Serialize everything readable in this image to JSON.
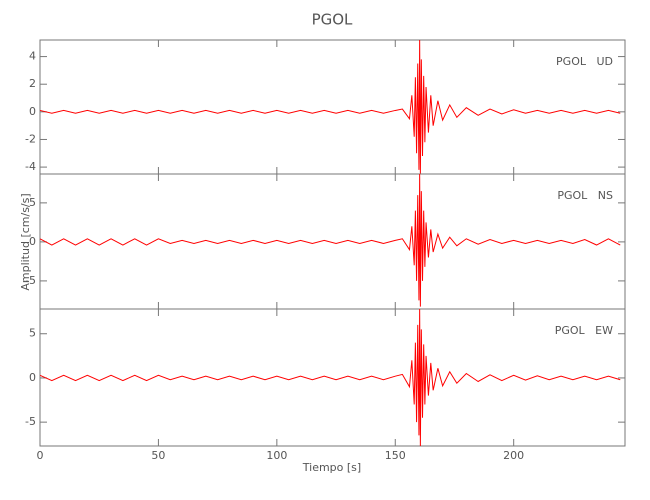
{
  "chart_data": [
    {
      "type": "line",
      "title": "PGOL",
      "label": "PGOL   UD",
      "color": "#ff0000",
      "x": [
        0,
        5,
        10,
        15,
        20,
        25,
        30,
        35,
        40,
        45,
        50,
        55,
        60,
        65,
        70,
        75,
        80,
        85,
        90,
        95,
        100,
        105,
        110,
        115,
        120,
        125,
        130,
        135,
        140,
        145,
        150,
        153,
        156,
        157,
        158,
        158.5,
        159,
        159.5,
        160,
        160.3,
        160.6,
        161,
        161.5,
        162,
        162.5,
        163,
        164,
        165,
        166,
        168,
        170,
        173,
        176,
        180,
        185,
        190,
        195,
        200,
        205,
        210,
        215,
        220,
        225,
        230,
        235,
        240,
        245
      ],
      "values": [
        0.1,
        -0.1,
        0.1,
        -0.1,
        0.1,
        -0.1,
        0.1,
        -0.1,
        0.1,
        -0.1,
        0.1,
        -0.1,
        0.1,
        -0.1,
        0.1,
        -0.1,
        0.1,
        -0.1,
        0.1,
        -0.1,
        0.1,
        -0.1,
        0.1,
        -0.1,
        0.1,
        -0.1,
        0.1,
        -0.1,
        0.1,
        -0.1,
        0.1,
        0.2,
        -0.5,
        1.2,
        -1.8,
        2.5,
        -3,
        3.5,
        -4.2,
        5.2,
        -4.5,
        3.8,
        -3.2,
        2.6,
        -2.2,
        1.8,
        -1.5,
        1.2,
        -1,
        0.8,
        -0.6,
        0.5,
        -0.4,
        0.3,
        -0.25,
        0.2,
        -0.15,
        0.15,
        -0.1,
        0.1,
        -0.1,
        0.1,
        -0.1,
        0.1,
        -0.1,
        0.1,
        -0.1
      ],
      "xlim": [
        0,
        247
      ],
      "xticks": [
        0,
        50,
        100,
        150,
        200
      ],
      "ylim": [
        -4.5,
        5.2
      ],
      "yticks": [
        -4,
        -2,
        0,
        2,
        4
      ]
    },
    {
      "type": "line",
      "ylabel": "Amplitud [cm/s/s]",
      "label": "PGOL   NS",
      "color": "#ff0000",
      "x": [
        0,
        5,
        10,
        15,
        20,
        25,
        30,
        35,
        40,
        45,
        50,
        55,
        60,
        65,
        70,
        75,
        80,
        85,
        90,
        95,
        100,
        105,
        110,
        115,
        120,
        125,
        130,
        135,
        140,
        145,
        150,
        153,
        156,
        157,
        158,
        158.5,
        159,
        159.5,
        160,
        160.3,
        160.6,
        161,
        161.5,
        162,
        162.5,
        163,
        164,
        165,
        166,
        168,
        170,
        173,
        176,
        180,
        185,
        190,
        195,
        200,
        205,
        210,
        215,
        220,
        225,
        230,
        235,
        240,
        245
      ],
      "values": [
        0.4,
        -0.4,
        0.4,
        -0.4,
        0.4,
        -0.4,
        0.4,
        -0.4,
        0.4,
        -0.4,
        0.4,
        -0.2,
        0.2,
        -0.2,
        0.2,
        -0.2,
        0.2,
        -0.2,
        0.2,
        -0.2,
        0.2,
        -0.2,
        0.2,
        -0.2,
        0.2,
        -0.2,
        0.2,
        -0.2,
        0.2,
        -0.2,
        0.2,
        0.4,
        -1,
        2,
        -3,
        4,
        -5,
        6,
        -7.5,
        8.7,
        -8.3,
        6.5,
        -5,
        4,
        -3.2,
        2.5,
        -2,
        1.6,
        -1.3,
        1,
        -0.8,
        0.6,
        -0.5,
        0.4,
        -0.3,
        0.3,
        -0.2,
        0.2,
        -0.2,
        0.2,
        -0.2,
        0.2,
        -0.2,
        0.3,
        -0.4,
        0.4,
        -0.4
      ],
      "xlim": [
        0,
        247
      ],
      "xticks": [
        0,
        50,
        100,
        150,
        200
      ],
      "ylim": [
        -8.6,
        8.7
      ],
      "yticks": [
        -5,
        0,
        5
      ]
    },
    {
      "type": "line",
      "xlabel": "Tiempo [s]",
      "label": "PGOL   EW",
      "color": "#ff0000",
      "x": [
        0,
        5,
        10,
        15,
        20,
        25,
        30,
        35,
        40,
        45,
        50,
        55,
        60,
        65,
        70,
        75,
        80,
        85,
        90,
        95,
        100,
        105,
        110,
        115,
        120,
        125,
        130,
        135,
        140,
        145,
        150,
        153,
        156,
        157,
        158,
        158.5,
        159,
        159.5,
        160,
        160.3,
        160.6,
        161,
        161.5,
        162,
        162.5,
        163,
        164,
        165,
        166,
        168,
        170,
        173,
        176,
        180,
        185,
        190,
        195,
        200,
        205,
        210,
        215,
        220,
        225,
        230,
        235,
        240,
        245
      ],
      "values": [
        0.3,
        -0.3,
        0.3,
        -0.3,
        0.3,
        -0.3,
        0.3,
        -0.3,
        0.3,
        -0.3,
        0.3,
        -0.2,
        0.2,
        -0.2,
        0.2,
        -0.2,
        0.2,
        -0.2,
        0.2,
        -0.2,
        0.2,
        -0.2,
        0.2,
        -0.2,
        0.2,
        -0.2,
        0.2,
        -0.2,
        0.2,
        -0.2,
        0.2,
        0.4,
        -1,
        2,
        -3,
        4,
        -5,
        6,
        -6.5,
        7.8,
        -7.7,
        5.5,
        -4.5,
        3.8,
        -3,
        2.5,
        -2,
        1.7,
        -1.4,
        1.1,
        -0.9,
        0.7,
        -0.6,
        0.5,
        -0.4,
        0.35,
        -0.3,
        0.3,
        -0.25,
        0.25,
        -0.2,
        0.2,
        -0.2,
        0.2,
        -0.2,
        0.2,
        -0.2
      ],
      "xlim": [
        0,
        247
      ],
      "xticks": [
        0,
        50,
        100,
        150,
        200
      ],
      "ylim": [
        -7.7,
        7.8
      ],
      "yticks": [
        -5,
        0,
        5
      ]
    }
  ]
}
